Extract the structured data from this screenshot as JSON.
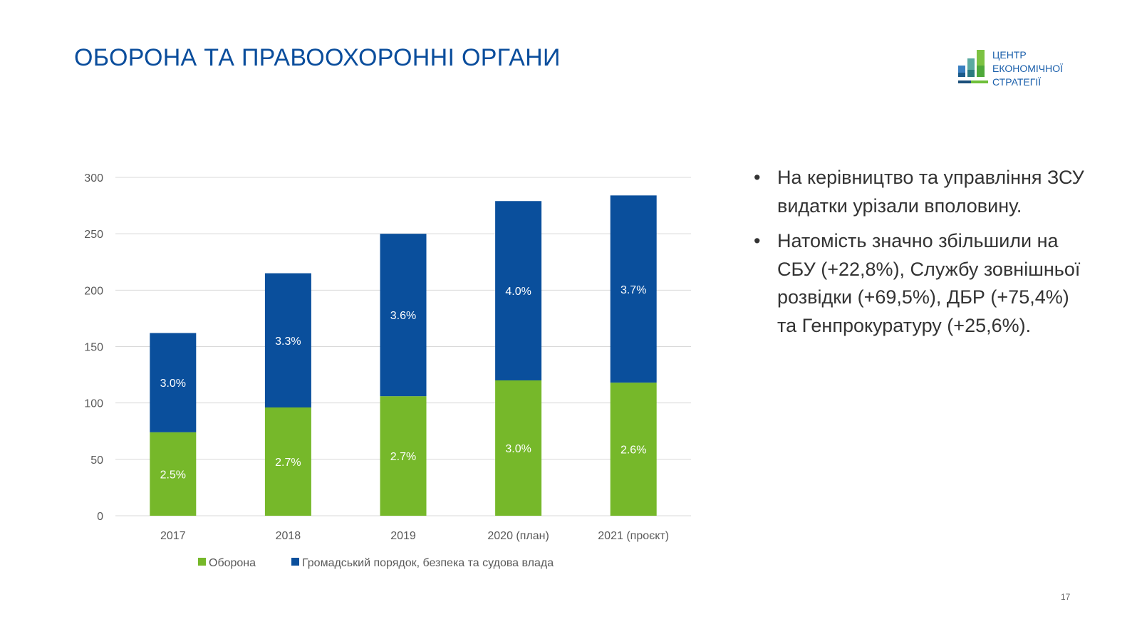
{
  "slide": {
    "title": "ОБОРОНА ТА ПРАВООХОРОННІ ОРГАНИ",
    "logo_text": [
      "ЦЕНТР",
      "ЕКОНОМІЧНОЇ",
      "СТРАТЕГІЇ"
    ],
    "bullets": [
      "На керівництво та управління ЗСУ видатки урізали вполовину.",
      "Натомість значно збільшили на СБУ (+22,8%), Службу зовнішньої розвідки (+69,5%), ДБР (+75,4%) та Генпрокуратуру (+25,6%)."
    ],
    "page_number": "17"
  },
  "chart_data": {
    "type": "bar",
    "stacked": true,
    "title": "",
    "xlabel": "",
    "ylabel": "",
    "ylim": [
      0,
      300
    ],
    "yticks": [
      0,
      50,
      100,
      150,
      200,
      250,
      300
    ],
    "grid": true,
    "legend_position": "bottom",
    "categories": [
      "2017",
      "2018",
      "2019",
      "2020 (план)",
      "2021 (проєкт)"
    ],
    "series": [
      {
        "name": "Оборона",
        "color": "#76b82a",
        "values": [
          74,
          96,
          106,
          120,
          118
        ],
        "labels": [
          "2.5%",
          "2.7%",
          "2.7%",
          "3.0%",
          "2.6%"
        ]
      },
      {
        "name": "Громадський порядок, безпека та судова влада",
        "color": "#0a4f9c",
        "values": [
          88,
          119,
          144,
          159,
          166
        ],
        "labels": [
          "3.0%",
          "3.3%",
          "3.6%",
          "4.0%",
          "3.7%"
        ]
      }
    ]
  }
}
